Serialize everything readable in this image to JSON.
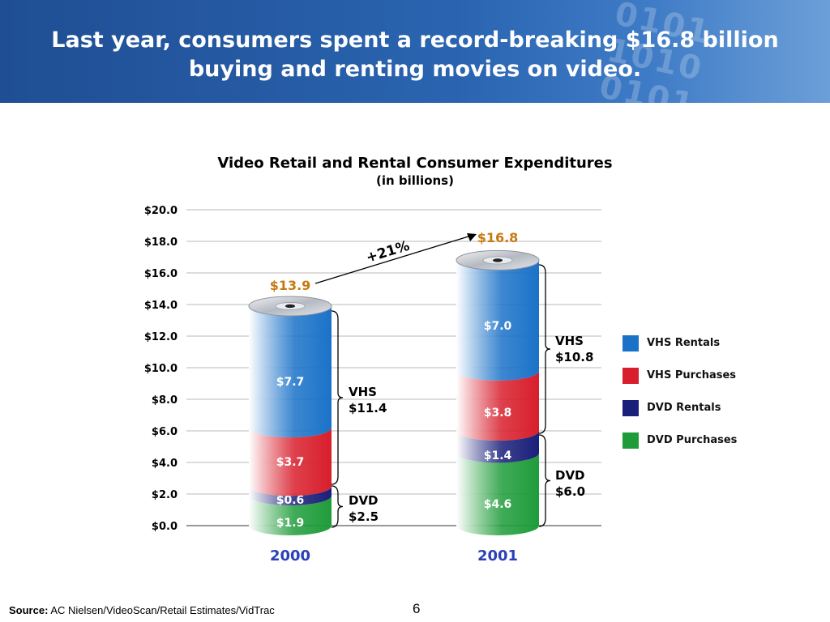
{
  "slide": {
    "title_line1": "Last year, consumers spent a record-breaking $16.8 billion",
    "title_line2": "buying and renting movies on video.",
    "banner_digits": "0101\n1010\n0101",
    "page_number": "6"
  },
  "source": {
    "label": "Source:",
    "text": "AC Nielsen/VideoScan/Retail Estimates/VidTrac"
  },
  "colors": {
    "vhs_rentals": "#1a72c8",
    "vhs_purchases": "#d81e2c",
    "dvd_rentals": "#1a1f7a",
    "dvd_purchases": "#1f9c3a",
    "total_label": "#c87a12",
    "year_label": "#2b3fb8"
  },
  "chart_data": {
    "type": "bar",
    "stacked": true,
    "title": "Video Retail and Rental Consumer Expenditures",
    "subtitle": "(in billions)",
    "categories": [
      "2000",
      "2001"
    ],
    "ylim": [
      0,
      20
    ],
    "yticks": [
      "$0.0",
      "$2.0",
      "$4.0",
      "$6.0",
      "$8.0",
      "$10.0",
      "$12.0",
      "$14.0",
      "$16.0",
      "$18.0",
      "$20.0"
    ],
    "grid": true,
    "legend_position": "right",
    "series": [
      {
        "name": "DVD Purchases",
        "key": "dvd_purchases",
        "values": [
          1.9,
          4.6
        ],
        "labels": [
          "$1.9",
          "$4.6"
        ]
      },
      {
        "name": "DVD Rentals",
        "key": "dvd_rentals",
        "values": [
          0.6,
          1.4
        ],
        "labels": [
          "$0.6",
          "$1.4"
        ]
      },
      {
        "name": "VHS Purchases",
        "key": "vhs_purchases",
        "values": [
          3.7,
          3.8
        ],
        "labels": [
          "$3.7",
          "$3.8"
        ]
      },
      {
        "name": "VHS Rentals",
        "key": "vhs_rentals",
        "values": [
          7.7,
          7.0
        ],
        "labels": [
          "$7.7",
          "$7.0"
        ]
      }
    ],
    "legend_order": [
      "VHS Rentals",
      "VHS Purchases",
      "DVD Rentals",
      "DVD Purchases"
    ],
    "totals": [
      13.9,
      16.8
    ],
    "total_labels": [
      "$13.9",
      "$16.8"
    ],
    "growth_label": "+21%",
    "annotations": [
      {
        "group": "VHS",
        "year": "2000",
        "value": 11.4,
        "line1": "VHS",
        "line2": "$11.4"
      },
      {
        "group": "DVD",
        "year": "2000",
        "value": 2.5,
        "line1": "DVD",
        "line2": "$2.5"
      },
      {
        "group": "VHS",
        "year": "2001",
        "value": 10.8,
        "line1": "VHS",
        "line2": "$10.8"
      },
      {
        "group": "DVD",
        "year": "2001",
        "value": 6.0,
        "line1": "DVD",
        "line2": "$6.0"
      }
    ]
  }
}
